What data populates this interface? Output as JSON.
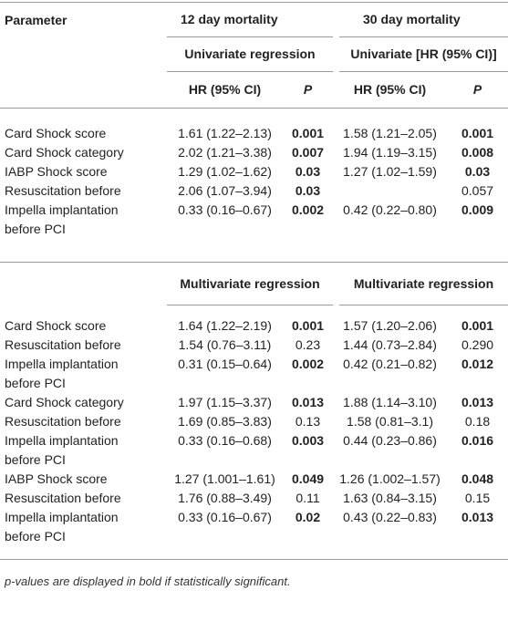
{
  "header": {
    "parameter": "Parameter",
    "col12": "12 day mortality",
    "col30": "30 day mortality"
  },
  "sections": [
    {
      "title12": "Univariate regression",
      "title30": "Univariate [HR (95% CI)]",
      "subheaders": {
        "hr12": "HR (95% CI)",
        "p12": "P",
        "hr30": "HR (95% CI)",
        "p30": "P"
      },
      "rows": [
        {
          "parameter": "Card Shock score",
          "hr12": "1.61 (1.22–2.13)",
          "p12": "0.001",
          "hr30": "1.58 (1.21–2.05)",
          "p30": "0.001"
        },
        {
          "parameter": "Card Shock category",
          "hr12": "2.02 (1.21–3.38)",
          "p12": "0.007",
          "hr30": "1.94 (1.19–3.15)",
          "p30": "0.008"
        },
        {
          "parameter": "IABP Shock score",
          "hr12": "1.29 (1.02–1.62)",
          "p12": "0.03",
          "hr30": "1.27 (1.02–1.59)",
          "p30": "0.03"
        },
        {
          "parameter": "Resuscitation before",
          "hr12": "2.06 (1.07–3.94)",
          "p12": "0.03",
          "p30": "0.057"
        },
        {
          "parameter": "Impella implantation before PCI",
          "hr12": "0.33 (0.16–0.67)",
          "p12": "0.002",
          "hr30": "0.42 (0.22–0.80)",
          "p30": "0.009"
        }
      ]
    },
    {
      "title12": "Multivariate regression",
      "title30": "Multivariate regression",
      "rows": [
        {
          "parameter": "Card Shock score",
          "hr12": "1.64 (1.22–2.19)",
          "p12": "0.001",
          "hr30": "1.57 (1.20–2.06)",
          "p30": "0.001"
        },
        {
          "parameter": "Resuscitation before",
          "hr12": "1.54 (0.76–3.11)",
          "p12": "0.23",
          "hr30": "1.44 (0.73–2.84)",
          "p30": "0.290"
        },
        {
          "parameter": "Impella implantation before PCI",
          "hr12": "0.31 (0.15–0.64)",
          "p12": "0.002",
          "hr30": "0.42 (0.21–0.82)",
          "p30": "0.012"
        },
        {
          "parameter": "Card Shock category",
          "hr12": "1.97 (1.15–3.37)",
          "p12": "0.013",
          "hr30": "1.88 (1.14–3.10)",
          "p30": "0.013"
        },
        {
          "parameter": "Resuscitation before",
          "hr12": "1.69 (0.85–3.83)",
          "p12": "0.13",
          "hr30": "1.58 (0.81–3.1)",
          "p30": "0.18"
        },
        {
          "parameter": "Impella implantation before PCI",
          "hr12": "0.33 (0.16–0.68)",
          "p12": "0.003",
          "hr30": "0.44 (0.23–0.86)",
          "p30": "0.016"
        },
        {
          "parameter": "IABP Shock score",
          "hr12": "1.27 (1.001–1.61)",
          "p12": "0.049",
          "hr30": "1.26 (1.002–1.57)",
          "p30": "0.048"
        },
        {
          "parameter": "Resuscitation before",
          "hr12": "1.76 (0.88–3.49)",
          "p12": "0.11",
          "hr30": "1.63 (0.84–3.15)",
          "p30": "0.15"
        },
        {
          "parameter": "Impella implantation before PCI",
          "hr12": "0.33 (0.16–0.67)",
          "p12": "0.02",
          "hr30": "0.43 (0.22–0.83)",
          "p30": "0.013"
        }
      ]
    }
  ],
  "footnote": "p-values are displayed in bold if statistically significant."
}
